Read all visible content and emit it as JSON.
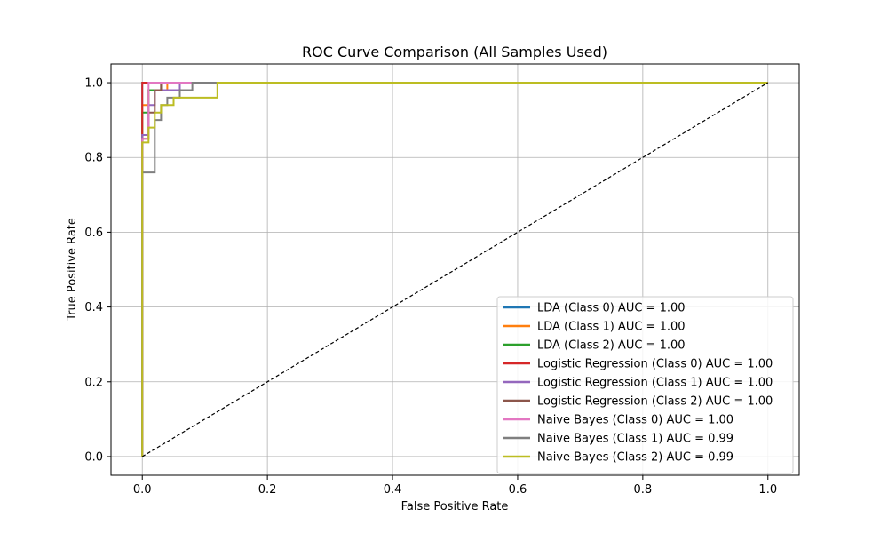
{
  "chart_data": {
    "type": "line",
    "title": "ROC Curve Comparison (All Samples Used)",
    "xlabel": "False Positive Rate",
    "ylabel": "True Positive Rate",
    "xlim": [
      -0.05,
      1.05
    ],
    "ylim": [
      -0.05,
      1.05
    ],
    "xticks": [
      0.0,
      0.2,
      0.4,
      0.6,
      0.8,
      1.0
    ],
    "yticks": [
      0.0,
      0.2,
      0.4,
      0.6,
      0.8,
      1.0
    ],
    "xtick_labels": [
      "0.0",
      "0.2",
      "0.4",
      "0.6",
      "0.8",
      "1.0"
    ],
    "ytick_labels": [
      "0.0",
      "0.2",
      "0.4",
      "0.6",
      "0.8",
      "1.0"
    ],
    "grid": true,
    "legend_position": "lower-right",
    "diagonal": {
      "x": [
        0,
        1
      ],
      "y": [
        0,
        1
      ],
      "color": "#000000",
      "style": "dashed"
    },
    "series": [
      {
        "name": "LDA (Class 0) AUC = 1.00",
        "color": "#1f77b4",
        "x": [
          0,
          0,
          1
        ],
        "y": [
          0,
          1,
          1
        ]
      },
      {
        "name": "LDA (Class 1) AUC = 1.00",
        "color": "#ff7f0e",
        "x": [
          0,
          0,
          0.01,
          0.01,
          0.04,
          0.04,
          1
        ],
        "y": [
          0,
          0.94,
          0.94,
          0.98,
          0.98,
          1,
          1
        ]
      },
      {
        "name": "LDA (Class 2) AUC = 1.00",
        "color": "#2ca02c",
        "x": [
          0,
          0,
          0.01,
          0.01,
          0.03,
          0.03,
          1
        ],
        "y": [
          0,
          0.92,
          0.92,
          0.98,
          0.98,
          1,
          1
        ]
      },
      {
        "name": "Logistic Regression (Class 0) AUC = 1.00",
        "color": "#d62728",
        "x": [
          0,
          0,
          1
        ],
        "y": [
          0,
          1,
          1
        ]
      },
      {
        "name": "Logistic Regression (Class 1) AUC = 1.00",
        "color": "#9467bd",
        "x": [
          0,
          0,
          0.01,
          0.01,
          0.02,
          0.02,
          0.06,
          0.06,
          1
        ],
        "y": [
          0,
          0.86,
          0.86,
          0.94,
          0.94,
          0.98,
          0.98,
          1,
          1
        ]
      },
      {
        "name": "Logistic Regression (Class 2) AUC = 1.00",
        "color": "#8c564b",
        "x": [
          0,
          0,
          0.01,
          0.01,
          0.02,
          0.02,
          0.03,
          0.03,
          1
        ],
        "y": [
          0,
          0.85,
          0.85,
          0.92,
          0.92,
          0.98,
          0.98,
          1,
          1
        ]
      },
      {
        "name": "Naive Bayes (Class 0) AUC = 1.00",
        "color": "#e377c2",
        "x": [
          0,
          0,
          0.01,
          0.01,
          1
        ],
        "y": [
          0,
          0.85,
          0.85,
          1,
          1
        ]
      },
      {
        "name": "Naive Bayes (Class 1) AUC = 0.99",
        "color": "#7f7f7f",
        "x": [
          0,
          0,
          0.02,
          0.02,
          0.03,
          0.03,
          0.04,
          0.04,
          0.06,
          0.06,
          0.08,
          0.08,
          0.12,
          0.12,
          1
        ],
        "y": [
          0,
          0.76,
          0.76,
          0.9,
          0.9,
          0.94,
          0.94,
          0.96,
          0.96,
          0.98,
          0.98,
          1.0,
          1.0,
          1.0,
          1.0
        ]
      },
      {
        "name": "Naive Bayes (Class 2) AUC = 0.99",
        "color": "#bcbd22",
        "x": [
          0,
          0,
          0.01,
          0.01,
          0.02,
          0.02,
          0.03,
          0.03,
          0.05,
          0.05,
          0.12,
          0.12,
          1
        ],
        "y": [
          0,
          0.84,
          0.84,
          0.88,
          0.88,
          0.92,
          0.92,
          0.94,
          0.94,
          0.96,
          0.96,
          1.0,
          1.0
        ]
      }
    ]
  }
}
